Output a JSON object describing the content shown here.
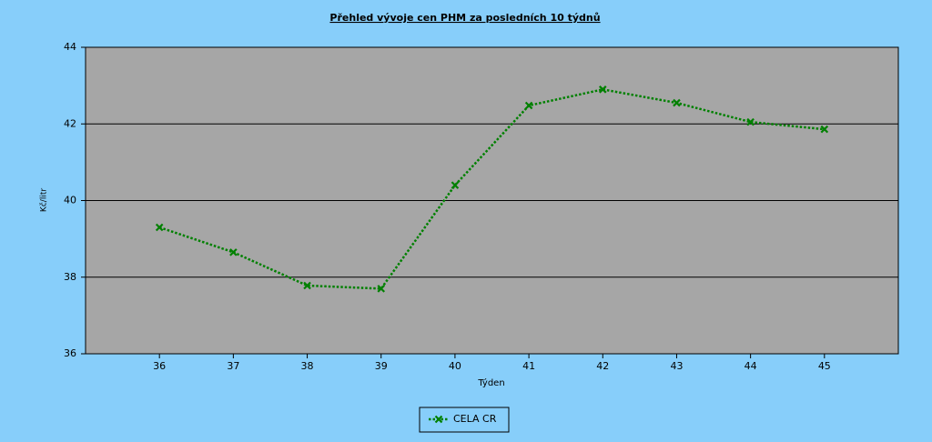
{
  "chart_data": {
    "type": "line",
    "title": "Přehled vývoje cen PHM za posledních 10 týdnů",
    "x_label": "Týden",
    "y_label": "Kč/litr",
    "x": [
      36,
      37,
      38,
      39,
      40,
      41,
      42,
      43,
      44,
      45
    ],
    "series": [
      {
        "name": "CELA CR",
        "color": "#008000",
        "values": [
          39.3,
          38.65,
          37.78,
          37.7,
          40.4,
          42.48,
          42.9,
          42.55,
          42.05,
          41.86
        ]
      }
    ],
    "xlim": [
      35,
      46
    ],
    "xticks": [
      36,
      37,
      38,
      39,
      40,
      41,
      42,
      43,
      44,
      45
    ],
    "ylim": [
      36,
      44
    ],
    "yticks": [
      36,
      38,
      40,
      42,
      44
    ],
    "grid": true,
    "legend": "bottom"
  }
}
